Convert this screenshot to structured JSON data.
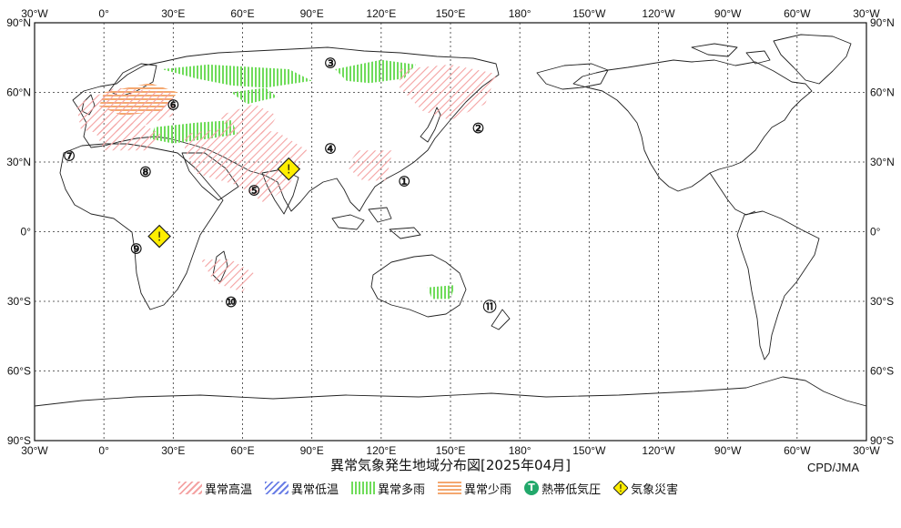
{
  "title": "異常気象発生地域分布図[2025年04月]",
  "credit": "CPD/JMA",
  "axes": {
    "lon_labels": [
      "30°W",
      "0°",
      "30°E",
      "60°E",
      "90°E",
      "120°E",
      "150°E",
      "180°",
      "150°W",
      "120°W",
      "90°W",
      "60°W",
      "30°W"
    ],
    "lat_labels": [
      "90°N",
      "60°N",
      "30°N",
      "0°",
      "30°S",
      "60°S",
      "90°S"
    ]
  },
  "legend": {
    "warm": "異常高温",
    "cold": "異常低温",
    "wet": "異常多雨",
    "dry": "異常少雨",
    "cyclone": "熱帯低気圧",
    "cyclone_symbol": "T",
    "disaster": "気象災害",
    "disaster_symbol": "!"
  },
  "colors": {
    "warm": "#f4a3a3",
    "cold": "#6b7fe6",
    "wet": "#6fdc5a",
    "dry": "#f4a870",
    "cyclone": "#22a86b",
    "disaster": "#ffee00"
  },
  "region_markers": [
    {
      "label": "①",
      "lon": 130,
      "lat": 22
    },
    {
      "label": "②",
      "lon": 162,
      "lat": 45
    },
    {
      "label": "③",
      "lon": 98,
      "lat": 73
    },
    {
      "label": "④",
      "lon": 98,
      "lat": 36
    },
    {
      "label": "⑤",
      "lon": 65,
      "lat": 18
    },
    {
      "label": "⑥",
      "lon": 30,
      "lat": 55
    },
    {
      "label": "⑦",
      "lon": -15,
      "lat": 33
    },
    {
      "label": "⑧",
      "lon": 18,
      "lat": 26
    },
    {
      "label": "⑨",
      "lon": 14,
      "lat": -7
    },
    {
      "label": "⑩",
      "lon": 55,
      "lat": -30
    },
    {
      "label": "⑪",
      "lon": 167,
      "lat": -32
    }
  ],
  "disaster_markers": [
    {
      "lon": 80,
      "lat": 27
    },
    {
      "lon": 24,
      "lat": -2
    }
  ],
  "warm_areas": [
    [
      [
        -12,
        55
      ],
      [
        5,
        62
      ],
      [
        30,
        60
      ],
      [
        30,
        50
      ],
      [
        15,
        45
      ],
      [
        0,
        42
      ],
      [
        -10,
        44
      ]
    ],
    [
      [
        -5,
        46
      ],
      [
        15,
        47
      ],
      [
        25,
        42
      ],
      [
        18,
        35
      ],
      [
        0,
        35
      ]
    ],
    [
      [
        35,
        42
      ],
      [
        55,
        45
      ],
      [
        75,
        43
      ],
      [
        88,
        35
      ],
      [
        80,
        20
      ],
      [
        70,
        12
      ],
      [
        58,
        20
      ],
      [
        40,
        25
      ],
      [
        35,
        35
      ]
    ],
    [
      [
        50,
        50
      ],
      [
        65,
        55
      ],
      [
        75,
        50
      ],
      [
        70,
        42
      ],
      [
        55,
        42
      ]
    ],
    [
      [
        110,
        35
      ],
      [
        125,
        35
      ],
      [
        122,
        22
      ],
      [
        112,
        22
      ],
      [
        105,
        28
      ]
    ],
    [
      [
        128,
        70
      ],
      [
        150,
        72
      ],
      [
        170,
        68
      ],
      [
        165,
        55
      ],
      [
        150,
        48
      ],
      [
        138,
        52
      ],
      [
        128,
        62
      ]
    ],
    [
      [
        42,
        -12
      ],
      [
        55,
        -12
      ],
      [
        65,
        -18
      ],
      [
        60,
        -26
      ],
      [
        48,
        -22
      ]
    ]
  ],
  "wet_areas": [
    [
      [
        25,
        70
      ],
      [
        45,
        72
      ],
      [
        80,
        70
      ],
      [
        90,
        65
      ],
      [
        70,
        62
      ],
      [
        55,
        63
      ],
      [
        40,
        66
      ]
    ],
    [
      [
        100,
        70
      ],
      [
        120,
        74
      ],
      [
        135,
        72
      ],
      [
        130,
        66
      ],
      [
        115,
        64
      ],
      [
        105,
        65
      ]
    ],
    [
      [
        22,
        45
      ],
      [
        40,
        47
      ],
      [
        55,
        48
      ],
      [
        58,
        42
      ],
      [
        45,
        40
      ],
      [
        30,
        38
      ],
      [
        20,
        40
      ]
    ],
    [
      [
        55,
        60
      ],
      [
        70,
        62
      ],
      [
        75,
        58
      ],
      [
        62,
        55
      ]
    ],
    [
      [
        140,
        -24
      ],
      [
        152,
        -23
      ],
      [
        150,
        -29
      ],
      [
        142,
        -29
      ]
    ]
  ],
  "dry_areas": [
    [
      [
        0,
        60
      ],
      [
        20,
        64
      ],
      [
        32,
        60
      ],
      [
        25,
        52
      ],
      [
        8,
        50
      ],
      [
        -2,
        54
      ]
    ]
  ]
}
